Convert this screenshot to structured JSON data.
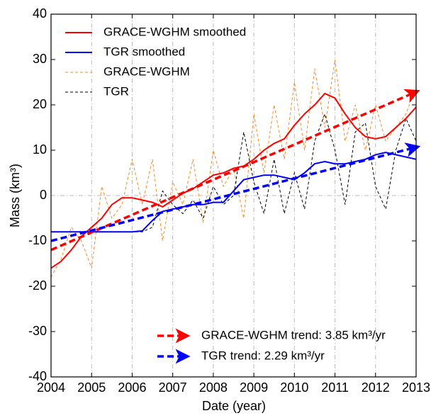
{
  "chart_data": {
    "type": "line",
    "xlabel": "Date (year)",
    "ylabel": "Mass (km³)",
    "x": [
      2004,
      2004.25,
      2004.5,
      2004.75,
      2005,
      2005.25,
      2005.5,
      2005.75,
      2006,
      2006.25,
      2006.5,
      2006.75,
      2007,
      2007.25,
      2007.5,
      2007.75,
      2008,
      2008.25,
      2008.5,
      2008.75,
      2009,
      2009.25,
      2009.5,
      2009.75,
      2010,
      2010.25,
      2010.5,
      2010.75,
      2011,
      2011.25,
      2011.5,
      2011.75,
      2012,
      2012.25,
      2012.5,
      2012.75,
      2013
    ],
    "series": [
      {
        "name": "GRACE-WGHM smoothed",
        "color": "#ff0000",
        "dash": false,
        "width": 2,
        "values": [
          -16,
          -14.5,
          -12,
          -9,
          -7,
          -5,
          -2,
          -0.5,
          -0.5,
          -1,
          -1.5,
          -2.5,
          -1,
          0.5,
          1.5,
          3,
          4.5,
          5,
          6,
          6.5,
          8,
          10,
          11.5,
          12.5,
          15.5,
          18,
          20,
          22.5,
          21.5,
          18,
          15,
          13,
          12.5,
          13,
          15,
          17,
          19.5
        ]
      },
      {
        "name": "TGR smoothed",
        "color": "#0000ff",
        "dash": false,
        "width": 2,
        "values": [
          -8,
          -8,
          -8,
          -8,
          -8,
          -8,
          -8,
          -8,
          -8,
          -7.8,
          -5.5,
          -3.5,
          -3,
          -2.5,
          -2,
          -2,
          -1.5,
          -1.5,
          1,
          3.5,
          4,
          4.5,
          4.5,
          4,
          3.5,
          5,
          7,
          7.5,
          7,
          7,
          7.5,
          8,
          9,
          9.5,
          9,
          8.5,
          8
        ]
      },
      {
        "name": "GRACE-WGHM",
        "color": "#f28c28",
        "dash": true,
        "width": 1,
        "values": [
          -18,
          -14,
          -7,
          -10,
          -16,
          2,
          -5,
          -2,
          8,
          -2,
          8,
          -10,
          3,
          -2,
          8,
          -6,
          10,
          2,
          6,
          -5,
          18,
          5,
          20,
          8,
          25,
          10,
          28,
          15,
          30,
          12,
          20,
          10,
          20,
          12,
          15,
          18,
          24
        ]
      },
      {
        "name": "TGR",
        "color": "#000000",
        "dash": true,
        "width": 1,
        "values": [
          -8,
          -8,
          -8,
          -8,
          -8,
          -8,
          -8,
          -8,
          -8,
          -8,
          -7,
          1,
          -2,
          -4,
          -1,
          -5,
          2,
          -2,
          0,
          14,
          3,
          -4,
          8,
          -4,
          5,
          -3,
          12,
          18,
          10,
          -2,
          14,
          16,
          2,
          -3,
          10,
          17,
          12
        ]
      }
    ],
    "trend_lines": [
      {
        "name": "GRACE-WGHM trend: 3.85 km³/yr",
        "color": "#ff0000",
        "x": [
          2004,
          2013
        ],
        "values": [
          -12,
          22.6
        ]
      },
      {
        "name": "TGR trend: 2.29 km³/yr",
        "color": "#0000ff",
        "x": [
          2004,
          2013
        ],
        "values": [
          -10,
          10.5
        ]
      }
    ],
    "xlim": [
      2004,
      2013
    ],
    "xticks": [
      2004,
      2005,
      2006,
      2007,
      2008,
      2009,
      2010,
      2011,
      2012,
      2013
    ],
    "ylim": [
      -40,
      40
    ],
    "yticks": [
      -40,
      -30,
      -20,
      -10,
      0,
      10,
      20,
      30,
      40
    ],
    "grid": "x",
    "hline": 0
  }
}
